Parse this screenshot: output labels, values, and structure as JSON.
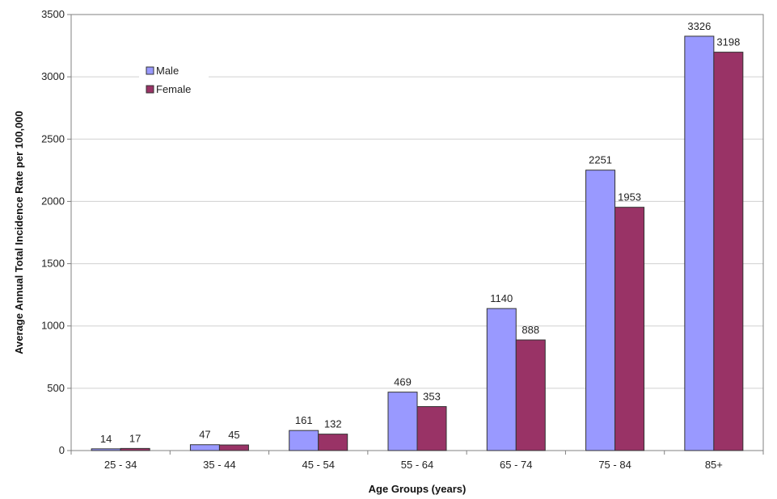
{
  "chart_data": {
    "type": "bar",
    "title": "",
    "xlabel": "Age Groups (years)",
    "ylabel": "Average Annual Total Incidence Rate per 100,000",
    "ylim": [
      0,
      3500
    ],
    "yticks": [
      0,
      500,
      1000,
      1500,
      2000,
      2500,
      3000,
      3500
    ],
    "grid": true,
    "legend_position": "top-left",
    "categories": [
      "25 - 34",
      "35 - 44",
      "45 - 54",
      "55 - 64",
      "65 - 74",
      "75 - 84",
      "85+"
    ],
    "series": [
      {
        "name": "Male",
        "color": "#9999ff",
        "values": [
          14,
          47,
          161,
          469,
          1140,
          2251,
          3326
        ]
      },
      {
        "name": "Female",
        "color": "#993366",
        "values": [
          17,
          45,
          132,
          353,
          888,
          1953,
          3198
        ]
      }
    ]
  }
}
